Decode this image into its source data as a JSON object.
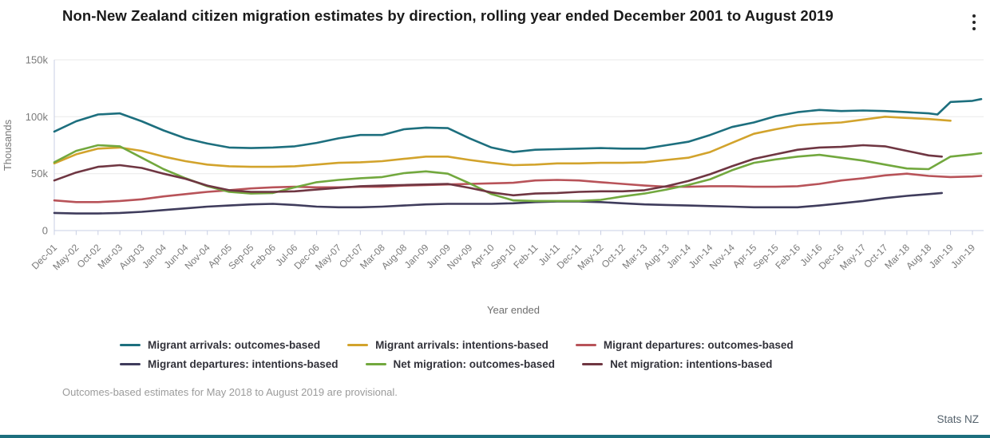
{
  "header": {
    "menu_icon": "kebab-menu-icon"
  },
  "colors": {
    "title_text": "#1a1a1a",
    "axis_text": "#7a7a7a",
    "gridline": "#e9e9e9",
    "axis_line": "#c9cfe4",
    "legend_text": "#32323a",
    "footnote_text": "#9b9b9b",
    "attribution_text": "#55626c",
    "bottom_bar": "#1d6f7e"
  },
  "chart_data": {
    "type": "line",
    "title": "Non-New Zealand citizen migration estimates by direction, rolling year ended December 2001 to August 2019",
    "ylabel": "Thousands",
    "xlabel": "Year ended",
    "units": "thousands",
    "ylim": [
      0,
      150000
    ],
    "ytick_values": [
      0,
      50,
      100,
      150
    ],
    "ytick_labels": [
      "0",
      "50k",
      "100k",
      "150k"
    ],
    "x_months_per_tick": 5,
    "x_total_months": 212,
    "x_tick_labels": [
      "Dec-01",
      "May-02",
      "Oct-02",
      "Mar-03",
      "Aug-03",
      "Jan-04",
      "Jun-04",
      "Nov-04",
      "Apr-05",
      "Sep-05",
      "Feb-06",
      "Jul-06",
      "Dec-06",
      "May-07",
      "Oct-07",
      "Mar-08",
      "Aug-08",
      "Jan-09",
      "Jun-09",
      "Nov-09",
      "Apr-10",
      "Sep-10",
      "Feb-11",
      "Jul-11",
      "Dec-11",
      "May-12",
      "Oct-12",
      "Mar-13",
      "Aug-13",
      "Jan-14",
      "Jun-14",
      "Nov-14",
      "Apr-15",
      "Sep-15",
      "Feb-16",
      "Jul-16",
      "Dec-16",
      "May-17",
      "Oct-17",
      "Mar-18",
      "Aug-18",
      "Jan-19",
      "Jun-19"
    ],
    "series": [
      {
        "name": "Migrant arrivals: outcomes-based",
        "color": "#1d6f7e",
        "month_offsets": [
          0,
          5,
          10,
          15,
          20,
          25,
          30,
          35,
          40,
          45,
          50,
          55,
          60,
          65,
          70,
          75,
          80,
          85,
          90,
          95,
          100,
          105,
          110,
          115,
          120,
          125,
          130,
          135,
          140,
          145,
          150,
          155,
          160,
          165,
          170,
          175,
          180,
          185,
          190,
          195,
          200,
          202,
          205,
          210,
          212
        ],
        "values": [
          87,
          96,
          102,
          103,
          96,
          88,
          81,
          76.5,
          73,
          72.5,
          73,
          74,
          77,
          81,
          84,
          84,
          89,
          90.5,
          90,
          81,
          73,
          69,
          71,
          71.5,
          72,
          72.5,
          72,
          72,
          75,
          78,
          84,
          91,
          95,
          100.5,
          104,
          106,
          105,
          105.5,
          105,
          104,
          103,
          102,
          113,
          114,
          115.5
        ]
      },
      {
        "name": "Migrant arrivals: intentions-based",
        "color": "#d2a32c",
        "month_offsets": [
          0,
          5,
          10,
          15,
          20,
          25,
          30,
          35,
          40,
          45,
          50,
          55,
          60,
          65,
          70,
          75,
          80,
          85,
          90,
          95,
          100,
          105,
          110,
          115,
          120,
          125,
          130,
          135,
          140,
          145,
          150,
          155,
          160,
          165,
          170,
          175,
          180,
          185,
          190,
          195,
          200,
          205
        ],
        "values": [
          59,
          67,
          72,
          73,
          70,
          65,
          61,
          58,
          56.5,
          56,
          56,
          56.5,
          58,
          59.5,
          60,
          61,
          63,
          65,
          65,
          62,
          59.5,
          57.5,
          58,
          59,
          59,
          59.5,
          59.5,
          60,
          62,
          64,
          69,
          77,
          85,
          89,
          92.5,
          94,
          95,
          97.5,
          100,
          99,
          98,
          96.5
        ]
      },
      {
        "name": "Migrant departures: outcomes-based",
        "color": "#b85359",
        "month_offsets": [
          0,
          5,
          10,
          15,
          20,
          25,
          30,
          35,
          40,
          45,
          50,
          55,
          60,
          65,
          70,
          75,
          80,
          85,
          90,
          95,
          100,
          105,
          110,
          115,
          120,
          125,
          130,
          135,
          140,
          145,
          150,
          155,
          160,
          165,
          170,
          175,
          180,
          185,
          190,
          195,
          200,
          205,
          210,
          212
        ],
        "values": [
          26.5,
          25,
          25,
          26,
          27.5,
          30,
          32,
          34,
          35.5,
          37,
          38,
          38.5,
          38,
          38,
          38.5,
          38.5,
          39.5,
          40,
          40.5,
          41,
          41.5,
          42,
          44,
          44.5,
          44,
          42.5,
          41,
          39.5,
          38.5,
          38.5,
          39,
          39,
          38.5,
          38.5,
          39,
          41,
          44,
          46,
          48.5,
          50,
          48,
          47,
          47.5,
          48
        ]
      },
      {
        "name": "Migrant departures: intentions-based",
        "color": "#3f3c5c",
        "month_offsets": [
          0,
          5,
          10,
          15,
          20,
          25,
          30,
          35,
          40,
          45,
          50,
          55,
          60,
          65,
          70,
          75,
          80,
          85,
          90,
          95,
          100,
          105,
          110,
          115,
          120,
          125,
          130,
          135,
          140,
          145,
          150,
          155,
          160,
          165,
          170,
          175,
          180,
          185,
          190,
          195,
          200,
          203
        ],
        "values": [
          15.5,
          15,
          15,
          15.5,
          16.5,
          18,
          19.5,
          21,
          22,
          23,
          23.5,
          22.5,
          21,
          20.5,
          20.5,
          21,
          22,
          23,
          23.5,
          23.5,
          23.5,
          24,
          25,
          25.5,
          25.5,
          25,
          24,
          23,
          22.5,
          22,
          21.5,
          21,
          20.5,
          20.5,
          20.5,
          22,
          24,
          26,
          28.5,
          30.5,
          32,
          33
        ]
      },
      {
        "name": "Net migration: outcomes-based",
        "color": "#72a83e",
        "month_offsets": [
          0,
          5,
          10,
          15,
          20,
          25,
          30,
          35,
          40,
          45,
          50,
          55,
          60,
          65,
          70,
          75,
          80,
          85,
          90,
          95,
          100,
          105,
          110,
          115,
          120,
          125,
          130,
          135,
          140,
          145,
          150,
          155,
          160,
          165,
          170,
          175,
          180,
          185,
          190,
          195,
          200,
          205,
          210,
          212
        ],
        "values": [
          60,
          70,
          75,
          74,
          64,
          54,
          46,
          39,
          34,
          32.5,
          33,
          38,
          42.5,
          44.5,
          46,
          47,
          50.5,
          52,
          50,
          41.5,
          32,
          26.5,
          26,
          26,
          26,
          27,
          30,
          32.5,
          36,
          40,
          45,
          53,
          59.5,
          62.5,
          65,
          66.5,
          64,
          61.5,
          58,
          54.5,
          54,
          65,
          67,
          68
        ]
      },
      {
        "name": "Net migration: intentions-based",
        "color": "#6f3642",
        "month_offsets": [
          0,
          5,
          10,
          15,
          20,
          25,
          30,
          35,
          40,
          45,
          50,
          55,
          60,
          65,
          70,
          75,
          80,
          85,
          90,
          95,
          100,
          105,
          110,
          115,
          120,
          125,
          130,
          135,
          140,
          145,
          150,
          155,
          160,
          165,
          170,
          175,
          180,
          185,
          190,
          195,
          200,
          203
        ],
        "values": [
          44,
          51,
          56,
          57.5,
          55,
          50,
          45.5,
          39.5,
          35.5,
          34,
          34,
          34.5,
          36,
          37.5,
          39,
          39.5,
          40,
          40.5,
          41,
          37.5,
          33.5,
          31,
          32.5,
          33,
          34,
          34.5,
          34.5,
          35.5,
          39,
          43.5,
          49.5,
          56.5,
          63,
          67,
          71,
          73,
          73.5,
          75,
          74,
          70,
          66,
          65
        ]
      }
    ],
    "legend_position": "bottom",
    "grid": "horizontal"
  },
  "footnote": "Outcomes-based estimates for May 2018 to August 2019 are provisional.",
  "attribution": "Stats NZ"
}
